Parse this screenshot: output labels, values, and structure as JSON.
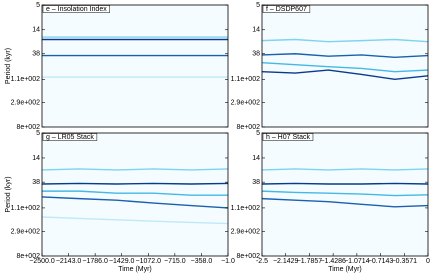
{
  "chart_data": [
    {
      "type": "spectrogram",
      "title": "e – Insolation Index",
      "ylabel": "Period (kyr)",
      "log_y": true,
      "xlim": [
        -2500,
        -1
      ],
      "ylim": [
        5,
        800
      ],
      "yticks": [
        5,
        14,
        38,
        {
          "value": 110,
          "label": "1.1e+002"
        },
        {
          "value": 290,
          "label": "2.9e+002"
        },
        {
          "value": 800,
          "label": "8e+002"
        }
      ],
      "series": [
        {
          "color": "#0b3a8c",
          "x": [
            -2500,
            -1800,
            -1100,
            -400,
            -1
          ],
          "values": [
            21,
            21,
            21,
            21,
            21
          ]
        },
        {
          "color": "#1b5fb0",
          "x": [
            -2500,
            -1800,
            -1100,
            -400,
            -1
          ],
          "values": [
            41,
            41,
            41,
            41,
            41
          ]
        },
        {
          "color": "#7fd3ef",
          "x": [
            -2500,
            -1800,
            -1100,
            -400,
            -1
          ],
          "values": [
            19,
            19,
            19,
            19,
            19
          ]
        },
        {
          "color": "#bfe9f7",
          "x": [
            -2500,
            -1800,
            -1100,
            -400,
            -1
          ],
          "values": [
            100,
            100,
            100,
            100,
            100
          ]
        }
      ]
    },
    {
      "type": "spectrogram",
      "title": "f – DSDP607",
      "log_y": true,
      "xlim": [
        -2.5,
        0
      ],
      "ylim": [
        5,
        800
      ],
      "yticks": [
        5,
        14,
        38,
        {
          "value": 110,
          "label": "1.1e+002"
        },
        {
          "value": 290,
          "label": "2.9e+002"
        },
        {
          "value": 800,
          "label": "8e+002"
        }
      ],
      "series": [
        {
          "color": "#1b5fb0",
          "x": [
            -2.5,
            -2,
            -1.5,
            -1,
            -0.5,
            0
          ],
          "values": [
            40,
            38,
            42,
            40,
            44,
            41
          ]
        },
        {
          "color": "#0b3a8c",
          "x": [
            -2.5,
            -2,
            -1.5,
            -1,
            -0.5,
            0
          ],
          "values": [
            80,
            85,
            75,
            90,
            110,
            95
          ]
        },
        {
          "color": "#45b8e6",
          "x": [
            -2.5,
            -2,
            -1.5,
            -1,
            -0.5,
            0
          ],
          "values": [
            55,
            60,
            65,
            70,
            80,
            75
          ]
        },
        {
          "color": "#7fd3ef",
          "x": [
            -2.5,
            -2,
            -1.5,
            -1,
            -0.5,
            0
          ],
          "values": [
            22,
            21,
            23,
            22,
            21,
            23
          ]
        }
      ]
    },
    {
      "type": "spectrogram",
      "title": "g – LR05 Stack",
      "ylabel": "Period (kyr)",
      "xlabel": "Time (Myr)",
      "log_y": true,
      "xlim": [
        -2500,
        -1
      ],
      "ylim": [
        5,
        800
      ],
      "xticks": [
        {
          "value": -2500,
          "label": "−2500.0"
        },
        {
          "value": -2143,
          "label": "−2143.0"
        },
        {
          "value": -1786,
          "label": "−1786.0"
        },
        {
          "value": -1429,
          "label": "−1429.0"
        },
        {
          "value": -1072,
          "label": "−1072.0"
        },
        {
          "value": -715,
          "label": "−715.0"
        },
        {
          "value": -358,
          "label": "−358.0"
        },
        {
          "value": -1,
          "label": "−1.0"
        }
      ],
      "yticks": [
        5,
        14,
        38,
        {
          "value": 110,
          "label": "1.1e+002"
        },
        {
          "value": 290,
          "label": "2.9e+002"
        },
        {
          "value": 800,
          "label": "8e+002"
        }
      ],
      "series": [
        {
          "color": "#0b3a8c",
          "x": [
            -2500,
            -2000,
            -1500,
            -1000,
            -500,
            -1
          ],
          "values": [
            41,
            40,
            41,
            40,
            41,
            40
          ]
        },
        {
          "color": "#1b5fb0",
          "x": [
            -2500,
            -2000,
            -1500,
            -1000,
            -500,
            -1
          ],
          "values": [
            70,
            75,
            80,
            90,
            100,
            110
          ]
        },
        {
          "color": "#45b8e6",
          "x": [
            -2500,
            -2000,
            -1500,
            -1000,
            -500,
            -1
          ],
          "values": [
            55,
            55,
            60,
            60,
            65,
            65
          ]
        },
        {
          "color": "#7fd3ef",
          "x": [
            -2500,
            -2000,
            -1500,
            -1000,
            -500,
            -1
          ],
          "values": [
            23,
            22,
            23,
            22,
            23,
            22
          ]
        },
        {
          "color": "#bfe9f7",
          "x": [
            -2500,
            -2000,
            -1500,
            -1000,
            -500,
            -1
          ],
          "values": [
            160,
            170,
            180,
            190,
            200,
            210
          ]
        }
      ]
    },
    {
      "type": "spectrogram",
      "title": "h – H07 Stack",
      "xlabel": "Time (Myr)",
      "log_y": true,
      "xlim": [
        -2.5,
        0
      ],
      "ylim": [
        5,
        800
      ],
      "xticks": [
        -2.5,
        {
          "value": -2.1429,
          "label": "−2.1429"
        },
        {
          "value": -1.7857,
          "label": "−1.7857"
        },
        {
          "value": -1.4286,
          "label": "−1.4286"
        },
        {
          "value": -1.0714,
          "label": "−1.0714"
        },
        {
          "value": -0.7143,
          "label": "−0.7143"
        },
        {
          "value": -0.3571,
          "label": "−0.3571"
        },
        0
      ],
      "yticks": [
        5,
        14,
        38,
        {
          "value": 110,
          "label": "1.1e+002"
        },
        {
          "value": 290,
          "label": "2.9e+002"
        },
        {
          "value": 800,
          "label": "8e+002"
        }
      ],
      "series": [
        {
          "color": "#0b3a8c",
          "x": [
            -2.5,
            -2,
            -1.5,
            -1,
            -0.5,
            0
          ],
          "values": [
            41,
            40,
            41,
            41,
            40,
            41
          ]
        },
        {
          "color": "#1b5fb0",
          "x": [
            -2.5,
            -2,
            -1.5,
            -1,
            -0.5,
            0
          ],
          "values": [
            75,
            80,
            85,
            95,
            105,
            100
          ]
        },
        {
          "color": "#45b8e6",
          "x": [
            -2.5,
            -2,
            -1.5,
            -1,
            -0.5,
            0
          ],
          "values": [
            55,
            58,
            60,
            62,
            66,
            64
          ]
        },
        {
          "color": "#7fd3ef",
          "x": [
            -2.5,
            -2,
            -1.5,
            -1,
            -0.5,
            0
          ],
          "values": [
            23,
            22,
            23,
            22,
            23,
            22
          ]
        }
      ]
    }
  ]
}
